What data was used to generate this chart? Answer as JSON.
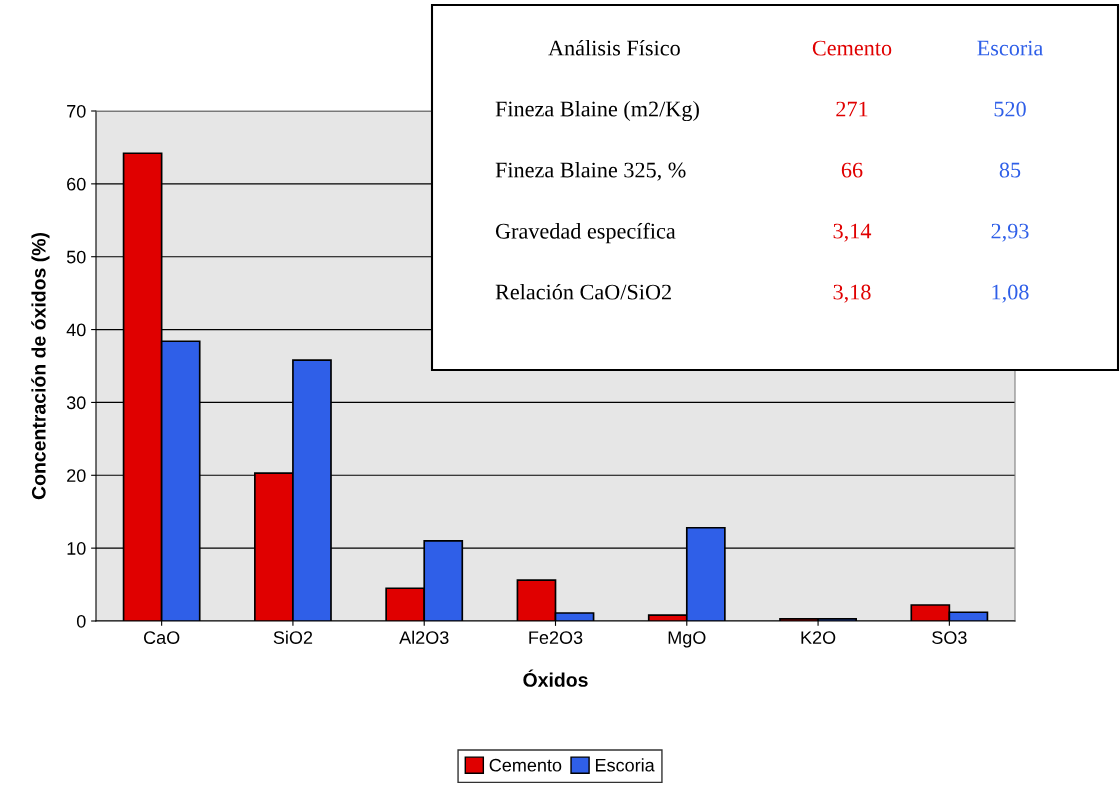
{
  "chart_data": {
    "type": "bar",
    "xlabel": "Óxidos",
    "ylabel": "Concentración de óxidos (%)",
    "categories": [
      "CaO",
      "SiO2",
      "Al2O3",
      "Fe2O3",
      "MgO",
      "K2O",
      "SO3"
    ],
    "series": [
      {
        "name": "Cemento",
        "color": "#e00000",
        "values": [
          64.2,
          20.3,
          4.5,
          5.6,
          0.8,
          0.3,
          2.2
        ]
      },
      {
        "name": "Escoria",
        "color": "#2f5fe8",
        "values": [
          38.4,
          35.8,
          11.0,
          1.1,
          12.8,
          0.3,
          1.2
        ]
      }
    ],
    "ylim": [
      0,
      70
    ],
    "yticks": [
      0,
      10,
      20,
      30,
      40,
      50,
      60,
      70
    ],
    "grid": "y",
    "legend": "bottom",
    "annotations": [
      "Análisis Físico",
      "Cemento",
      "Escoria",
      "Fineza Blaine (m2/Kg)",
      "271",
      "520",
      "Fineza Blaine 325, %",
      "66",
      "85",
      "Gravedad específica",
      "3,14",
      "2,93",
      "Relación CaO/SiO2",
      "3,18",
      "1,08"
    ]
  }
}
